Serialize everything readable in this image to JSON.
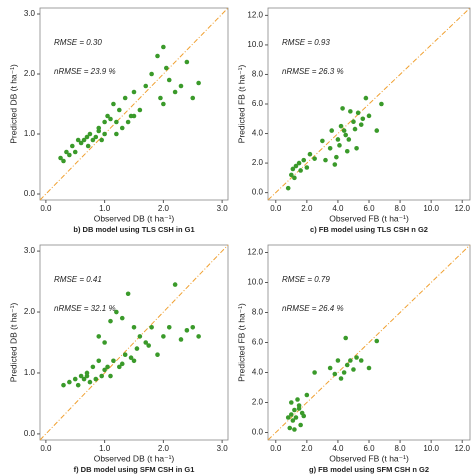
{
  "chart_data": [
    {
      "type": "scatter",
      "x_label": "Observed DB (t ha⁻¹)",
      "y_label": "Predicted DB (t ha⁻¹)",
      "caption": "b) DB model using TLS CSH in G1",
      "annotations": [
        "RMSE = 0.30",
        "nRMSE = 23.9 %"
      ],
      "color": "#3a9a2a",
      "xlim": [
        -0.1,
        3.1
      ],
      "ylim": [
        -0.1,
        3.1
      ],
      "xticks": [
        {
          "value": 0,
          "label": "0.0"
        },
        {
          "value": 1,
          "label": "1.0"
        },
        {
          "value": 2,
          "label": "2.0"
        },
        {
          "value": 3,
          "label": "3.0"
        }
      ],
      "yticks": [
        {
          "value": 0,
          "label": "0.0"
        },
        {
          "value": 1,
          "label": "1.0"
        },
        {
          "value": 2,
          "label": "2.0"
        },
        {
          "value": 3,
          "label": "3.0"
        }
      ],
      "x": [
        0.25,
        0.3,
        0.35,
        0.4,
        0.45,
        0.5,
        0.55,
        0.6,
        0.65,
        0.7,
        0.72,
        0.75,
        0.8,
        0.85,
        0.9,
        0.95,
        1.0,
        1.05,
        1.1,
        1.15,
        1.2,
        1.25,
        1.3,
        1.35,
        1.4,
        1.45,
        1.5,
        1.6,
        1.7,
        1.8,
        1.9,
        1.95,
        2.0,
        2.05,
        2.1,
        2.2,
        2.3,
        2.4,
        2.5,
        2.6,
        1.0,
        1.2,
        1.5,
        0.9,
        2.0
      ],
      "y": [
        0.6,
        0.55,
        0.7,
        0.65,
        0.8,
        0.7,
        0.9,
        0.85,
        0.9,
        0.95,
        0.8,
        1.0,
        0.9,
        0.95,
        1.1,
        0.9,
        1.0,
        1.3,
        1.25,
        1.5,
        1.2,
        1.4,
        1.1,
        1.6,
        1.2,
        1.3,
        1.7,
        1.4,
        1.8,
        2.0,
        2.3,
        1.6,
        2.45,
        2.1,
        1.9,
        1.7,
        1.8,
        2.2,
        1.6,
        1.85,
        1.2,
        1.0,
        1.3,
        1.05,
        1.5
      ]
    },
    {
      "type": "scatter",
      "x_label": "Observed FB (t ha⁻¹)",
      "y_label": "Predicted FB (t ha⁻¹)",
      "caption": "c) FB model using TLS CSH n G2",
      "annotations": [
        "RMSE = 0.93",
        "nRMSE = 26.3 %"
      ],
      "color": "#3a9a2a",
      "xlim": [
        -0.5,
        12.5
      ],
      "ylim": [
        -0.5,
        12.5
      ],
      "xticks": [
        {
          "value": 0,
          "label": "0.0"
        },
        {
          "value": 2,
          "label": "2.0"
        },
        {
          "value": 4,
          "label": "4.0"
        },
        {
          "value": 6,
          "label": "6.0"
        },
        {
          "value": 8,
          "label": "8.0"
        },
        {
          "value": 10,
          "label": "10.0"
        },
        {
          "value": 12,
          "label": "12.0"
        }
      ],
      "yticks": [
        {
          "value": 0,
          "label": "0.0"
        },
        {
          "value": 2,
          "label": "2.0"
        },
        {
          "value": 4,
          "label": "4.0"
        },
        {
          "value": 6,
          "label": "6.0"
        },
        {
          "value": 8,
          "label": "8.0"
        },
        {
          "value": 10,
          "label": "10.0"
        },
        {
          "value": 12,
          "label": "12.0"
        }
      ],
      "x": [
        0.8,
        1.0,
        1.1,
        1.2,
        1.3,
        1.5,
        1.6,
        1.8,
        2.0,
        2.2,
        2.5,
        3.0,
        3.2,
        3.5,
        3.6,
        3.8,
        4.0,
        4.1,
        4.2,
        4.4,
        4.5,
        4.6,
        4.8,
        5.0,
        5.1,
        5.2,
        5.5,
        5.6,
        5.8,
        6.0,
        6.5,
        6.8,
        4.3,
        3.9,
        5.3,
        4.7
      ],
      "y": [
        0.3,
        1.2,
        1.6,
        1.0,
        1.8,
        2.0,
        1.5,
        2.2,
        1.7,
        2.6,
        2.3,
        3.5,
        2.2,
        3.0,
        4.2,
        1.9,
        3.6,
        3.2,
        4.5,
        4.2,
        3.9,
        2.8,
        5.5,
        4.8,
        4.3,
        3.0,
        4.6,
        5.0,
        6.4,
        5.2,
        4.2,
        6.0,
        5.7,
        2.4,
        5.4,
        3.6
      ]
    },
    {
      "type": "scatter",
      "x_label": "Observed DB (t ha⁻¹)",
      "y_label": "Predicted DB (t ha⁻¹)",
      "caption": "f) DB model using SFM CSH in G1",
      "annotations": [
        "RMSE = 0.41",
        "nRMSE = 32.1 %"
      ],
      "color": "#3a9a2a",
      "xlim": [
        -0.1,
        3.1
      ],
      "ylim": [
        -0.1,
        3.1
      ],
      "xticks": [
        {
          "value": 0,
          "label": "0.0"
        },
        {
          "value": 1,
          "label": "1.0"
        },
        {
          "value": 2,
          "label": "2.0"
        },
        {
          "value": 3,
          "label": "3.0"
        }
      ],
      "yticks": [
        {
          "value": 0,
          "label": "0.0"
        },
        {
          "value": 1,
          "label": "1.0"
        },
        {
          "value": 2,
          "label": "2.0"
        },
        {
          "value": 3,
          "label": "3.0"
        }
      ],
      "x": [
        0.3,
        0.4,
        0.5,
        0.55,
        0.6,
        0.65,
        0.7,
        0.75,
        0.8,
        0.85,
        0.9,
        0.95,
        1.0,
        1.0,
        1.05,
        1.1,
        1.15,
        1.2,
        1.25,
        1.3,
        1.35,
        1.4,
        1.45,
        1.5,
        1.55,
        1.6,
        1.7,
        1.75,
        1.8,
        1.9,
        2.0,
        2.1,
        2.2,
        2.3,
        2.4,
        2.5,
        2.6,
        0.9,
        1.1,
        1.3,
        1.5,
        0.7
      ],
      "y": [
        0.8,
        0.85,
        0.9,
        0.8,
        0.95,
        0.9,
        1.0,
        0.85,
        1.1,
        0.9,
        1.2,
        0.95,
        1.05,
        1.5,
        1.1,
        1.85,
        1.2,
        2.0,
        1.1,
        1.9,
        1.3,
        2.3,
        1.25,
        1.75,
        1.4,
        1.6,
        1.5,
        1.45,
        1.75,
        1.3,
        1.6,
        1.75,
        2.45,
        1.55,
        1.7,
        1.75,
        1.6,
        1.6,
        0.95,
        1.15,
        1.2,
        0.95
      ]
    },
    {
      "type": "scatter",
      "x_label": "Observed FB (t ha⁻¹)",
      "y_label": "Predicted FB (t ha⁻¹)",
      "caption": "g) FB model using SFM CSH n G2",
      "annotations": [
        "RMSE = 0.79",
        "nRMSE = 26.4 %"
      ],
      "color": "#3a9a2a",
      "xlim": [
        -0.5,
        12.5
      ],
      "ylim": [
        -0.5,
        12.5
      ],
      "xticks": [
        {
          "value": 0,
          "label": "0.0"
        },
        {
          "value": 2,
          "label": "2.0"
        },
        {
          "value": 4,
          "label": "4.0"
        },
        {
          "value": 6,
          "label": "6.0"
        },
        {
          "value": 8,
          "label": "8.0"
        },
        {
          "value": 10,
          "label": "10.0"
        },
        {
          "value": 12,
          "label": "12.0"
        }
      ],
      "yticks": [
        {
          "value": 0,
          "label": "0.0"
        },
        {
          "value": 2,
          "label": "2.0"
        },
        {
          "value": 4,
          "label": "4.0"
        },
        {
          "value": 6,
          "label": "6.0"
        },
        {
          "value": 8,
          "label": "8.0"
        },
        {
          "value": 10,
          "label": "10.0"
        },
        {
          "value": 12,
          "label": "12.0"
        }
      ],
      "x": [
        0.8,
        0.9,
        1.0,
        1.0,
        1.1,
        1.2,
        1.3,
        1.4,
        1.5,
        1.6,
        1.7,
        1.8,
        2.0,
        2.5,
        3.5,
        4.0,
        4.2,
        4.5,
        4.6,
        4.8,
        5.0,
        5.2,
        5.5,
        6.0,
        6.5,
        4.4,
        3.8,
        1.2,
        1.5
      ],
      "y": [
        1.0,
        0.3,
        1.2,
        2.0,
        0.8,
        1.5,
        1.0,
        2.2,
        1.8,
        0.5,
        1.3,
        1.1,
        2.5,
        4.0,
        4.3,
        4.8,
        3.6,
        6.3,
        4.5,
        4.8,
        4.2,
        5.0,
        4.8,
        4.3,
        6.1,
        4.0,
        3.9,
        0.2,
        1.6
      ]
    }
  ]
}
